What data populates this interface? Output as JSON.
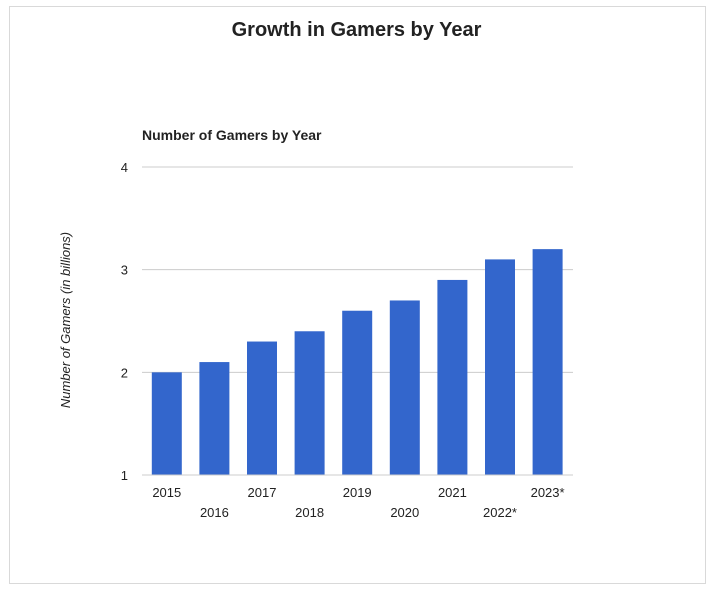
{
  "page": {
    "title": "Growth in Gamers by Year"
  },
  "colors": {
    "bar": "#3366cc",
    "grid": "#cccccc",
    "axis": "#444444",
    "text": "#222222"
  },
  "chart_data": {
    "type": "bar",
    "title": "Number of Gamers by Year",
    "xlabel": "",
    "ylabel": "Number of Gamers (in billions)",
    "categories": [
      "2015",
      "2016",
      "2017",
      "2018",
      "2019",
      "2020",
      "2021",
      "2022*",
      "2023*"
    ],
    "values": [
      2.0,
      2.1,
      2.3,
      2.4,
      2.6,
      2.7,
      2.9,
      3.1,
      3.2
    ],
    "ylim": [
      1,
      4
    ],
    "yticks": [
      1,
      2,
      3,
      4
    ],
    "ytick_labels": [
      "1",
      "2",
      "3",
      "4"
    ],
    "grid": true,
    "legend": "none"
  }
}
